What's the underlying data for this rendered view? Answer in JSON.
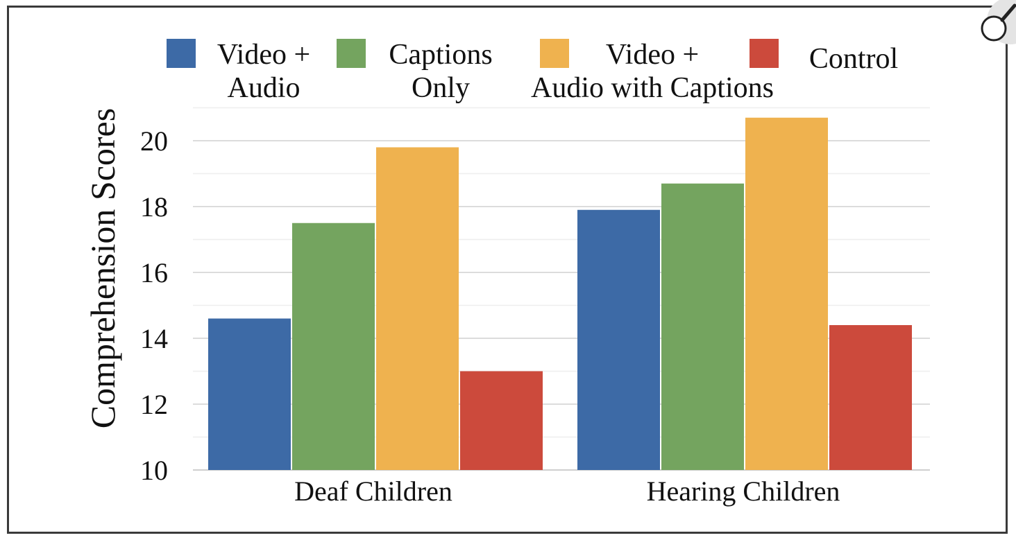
{
  "chart_data": {
    "type": "bar",
    "title": "",
    "xlabel": "",
    "ylabel": "Comprehension Scores",
    "categories": [
      "Deaf Children",
      "Hearing Children"
    ],
    "series": [
      {
        "name": "Video + Audio",
        "label_lines": [
          "Video +",
          "Audio"
        ],
        "color": "#3d6aa6",
        "values": [
          14.6,
          17.9
        ]
      },
      {
        "name": "Captions Only",
        "label_lines": [
          "Captions",
          "Only"
        ],
        "color": "#74a45f",
        "values": [
          17.5,
          18.7
        ]
      },
      {
        "name": "Video + Audio with Captions",
        "label_lines": [
          "Video +",
          "Audio with Captions"
        ],
        "color": "#efb24f",
        "values": [
          19.8,
          20.7
        ]
      },
      {
        "name": "Control",
        "label_lines": [
          "Control"
        ],
        "color": "#cc4a3c",
        "values": [
          13.0,
          14.4
        ]
      }
    ],
    "yticks": [
      10,
      12,
      14,
      16,
      18,
      20
    ],
    "ylim": [
      10,
      21
    ],
    "grid": true,
    "legend_position": "top"
  },
  "icons": {
    "corner": "magnifier-icon"
  }
}
